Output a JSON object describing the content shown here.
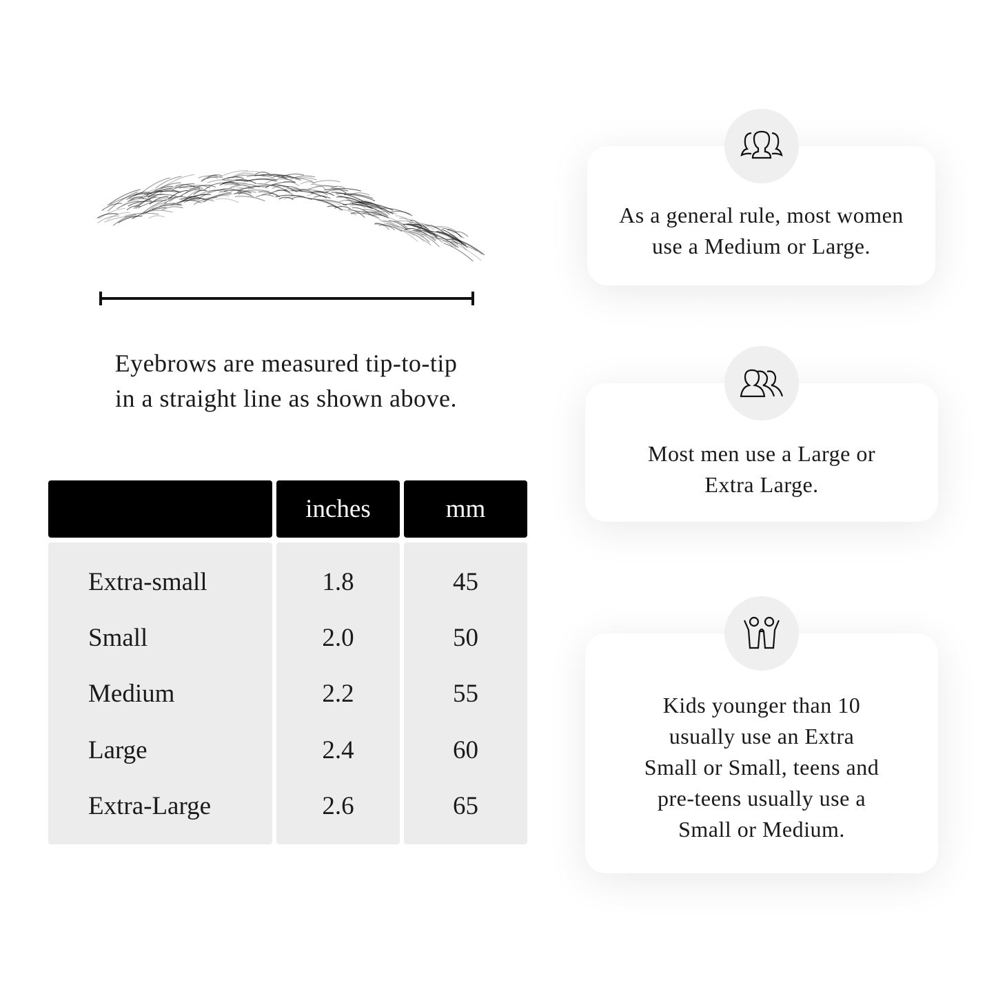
{
  "caption": {
    "line1": "Eyebrows are measured tip-to-tip",
    "line2": "in a straight line as shown above."
  },
  "table": {
    "headers": [
      "",
      "inches",
      "mm"
    ],
    "rows": [
      {
        "size": "Extra-small",
        "inches": "1.8",
        "mm": "45"
      },
      {
        "size": "Small",
        "inches": "2.0",
        "mm": "50"
      },
      {
        "size": "Medium",
        "inches": "2.2",
        "mm": "55"
      },
      {
        "size": "Large",
        "inches": "2.4",
        "mm": "60"
      },
      {
        "size": "Extra-Large",
        "inches": "2.6",
        "mm": "65"
      }
    ]
  },
  "cards": [
    {
      "icon": "women-group-icon",
      "lines": [
        "As a general rule, most women",
        "use a Medium or Large."
      ]
    },
    {
      "icon": "men-group-icon",
      "lines": [
        "Most men use a Large or",
        "Extra Large."
      ]
    },
    {
      "icon": "kids-icon",
      "lines": [
        "Kids younger than 10",
        "usually use an Extra",
        "Small or Small, teens and",
        "pre-teens usually use a",
        "Small or Medium."
      ]
    }
  ],
  "colors": {
    "header_bg": "#000000",
    "body_bg": "#ececec",
    "icon_circle": "#efefef"
  }
}
